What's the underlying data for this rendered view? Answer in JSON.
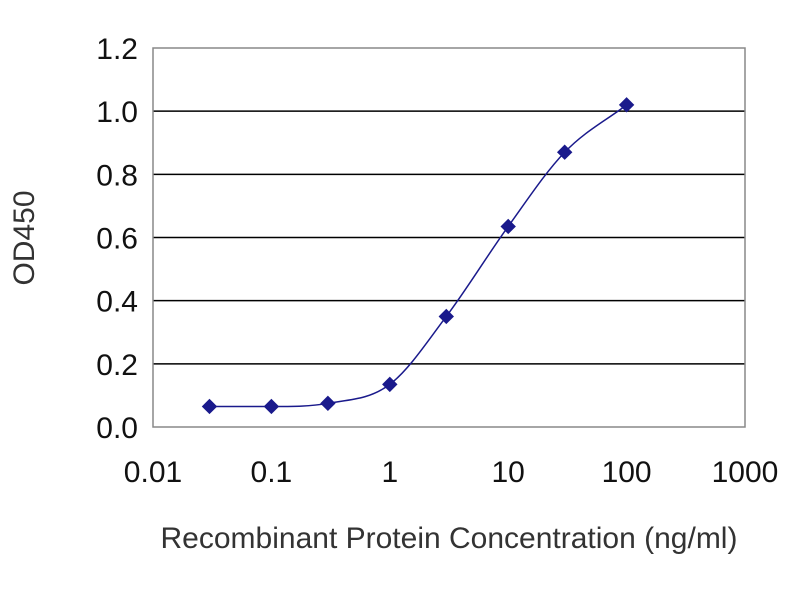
{
  "chart_data": {
    "type": "scatter",
    "title": "",
    "xlabel": "Recombinant Protein Concentration (ng/ml)",
    "ylabel": "OD450",
    "xscale": "log",
    "xlim": [
      0.01,
      1000
    ],
    "ylim": [
      0.0,
      1.2
    ],
    "xticks": [
      0.01,
      0.1,
      1,
      10,
      100,
      1000
    ],
    "x_tick_labels": [
      "0.01",
      "0.1",
      "1",
      "10",
      "100",
      "1000"
    ],
    "yticks": [
      0.0,
      0.2,
      0.4,
      0.6,
      0.8,
      1.0,
      1.2
    ],
    "y_tick_labels": [
      "0.0",
      "0.2",
      "0.4",
      "0.6",
      "0.8",
      "1.0",
      "1.2"
    ],
    "grid": "horizontal",
    "legend": "none",
    "series": [
      {
        "x": [
          0.03,
          0.1,
          0.3,
          1,
          3,
          10,
          30,
          100
        ],
        "y": [
          0.065,
          0.065,
          0.075,
          0.135,
          0.35,
          0.635,
          0.87,
          1.02
        ],
        "marker": "diamond",
        "fit_curve": "smooth sigmoid"
      }
    ],
    "colors": {
      "series": "#1a1a8c",
      "grid": "#000000",
      "axis": "#888888"
    }
  }
}
